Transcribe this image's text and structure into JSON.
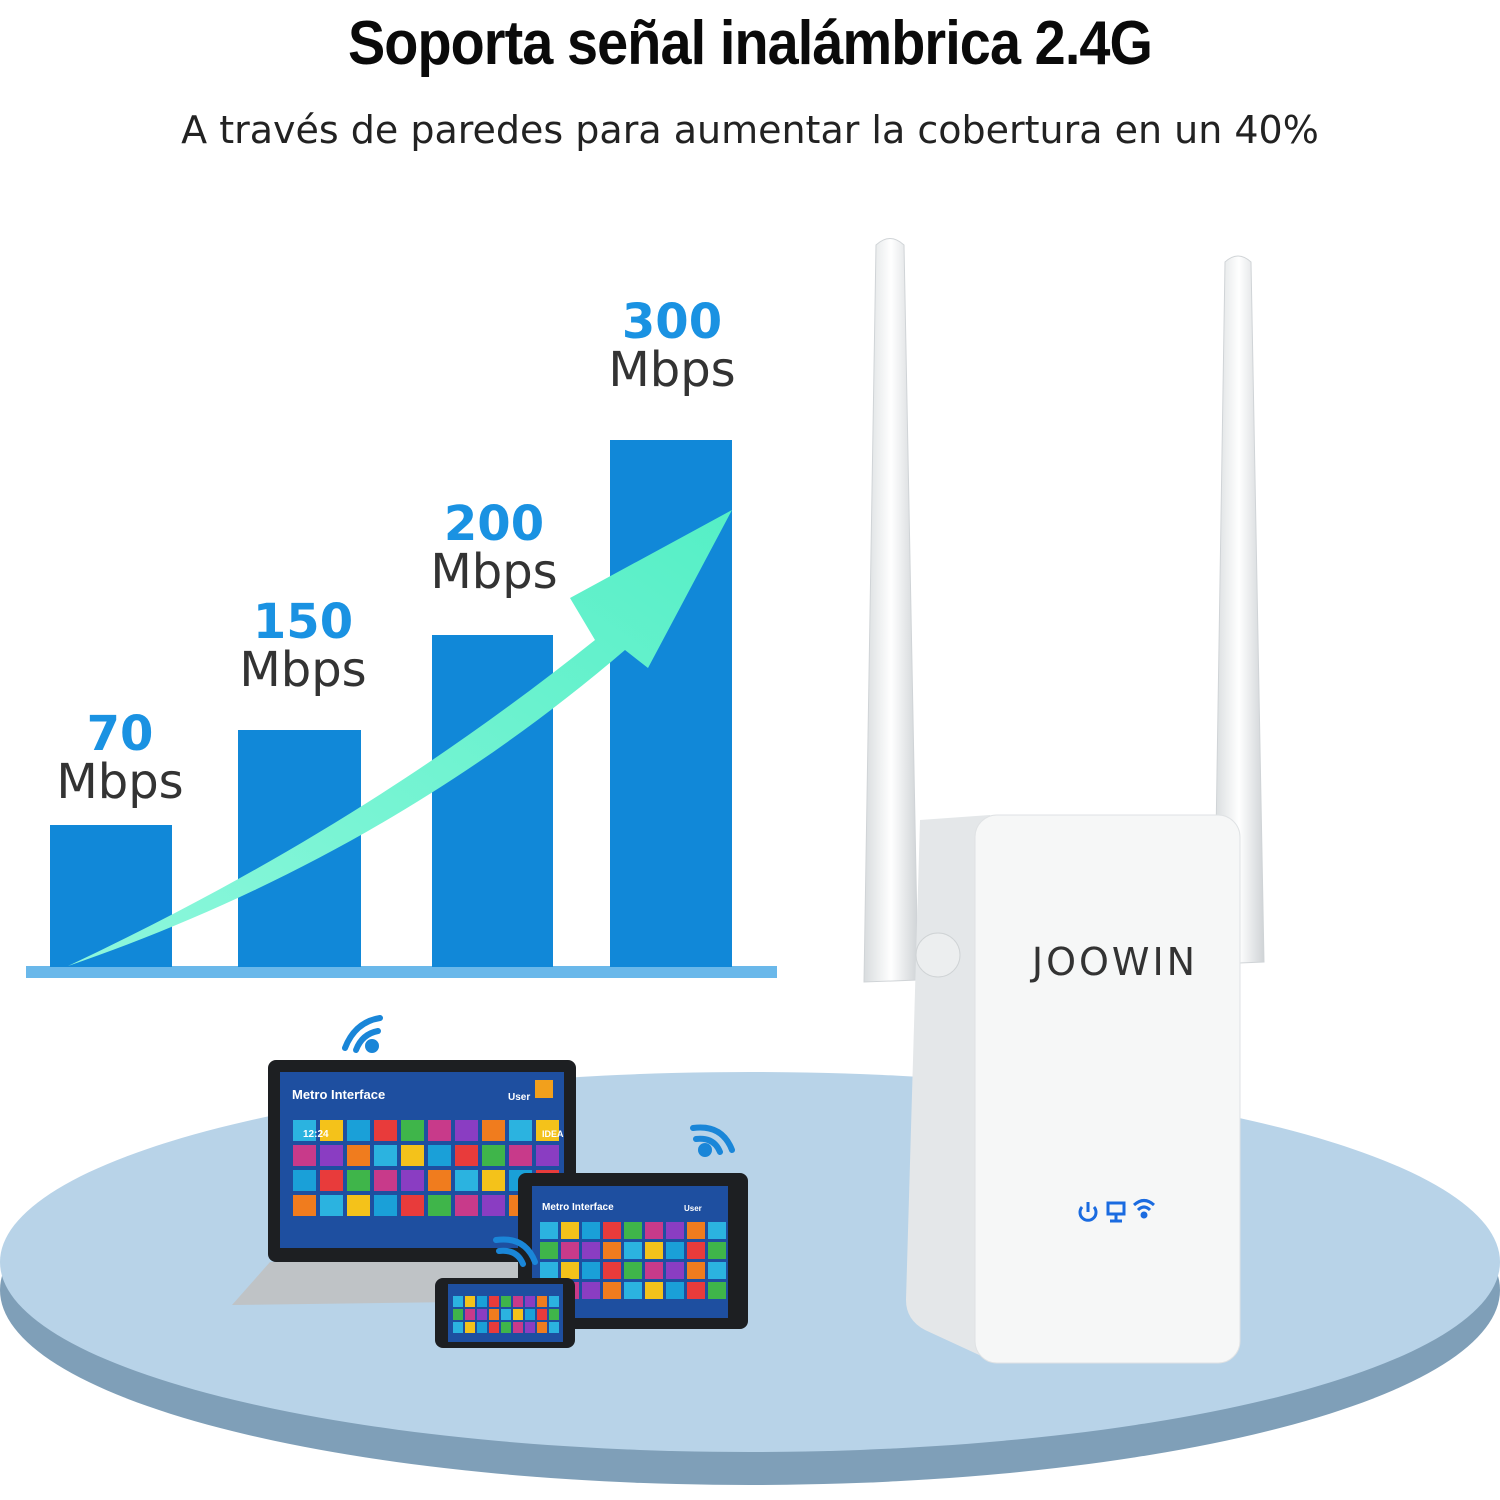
{
  "header": {
    "title": "Soporta señal inalámbrica 2.4G",
    "subtitle": "A través de paredes para aumentar la cobertura en un 40%"
  },
  "speed_bars": [
    {
      "value": "70",
      "unit": "Mbps"
    },
    {
      "value": "150",
      "unit": "Mbps"
    },
    {
      "value": "200",
      "unit": "Mbps"
    },
    {
      "value": "300",
      "unit": "Mbps"
    }
  ],
  "product": {
    "brand": "JOOWIN",
    "indicator_icons": [
      "power-icon",
      "ethernet-icon",
      "wifi-icon"
    ]
  },
  "devices": {
    "screen_title": "Metro Interface",
    "user_label": "User",
    "clock": "12:24",
    "tile_label": "IDEA"
  },
  "colors": {
    "bar": "#1188d8",
    "arrow": "#6ef3d0",
    "value_text": "#1a92e2",
    "platform": "#b8d3e8"
  }
}
